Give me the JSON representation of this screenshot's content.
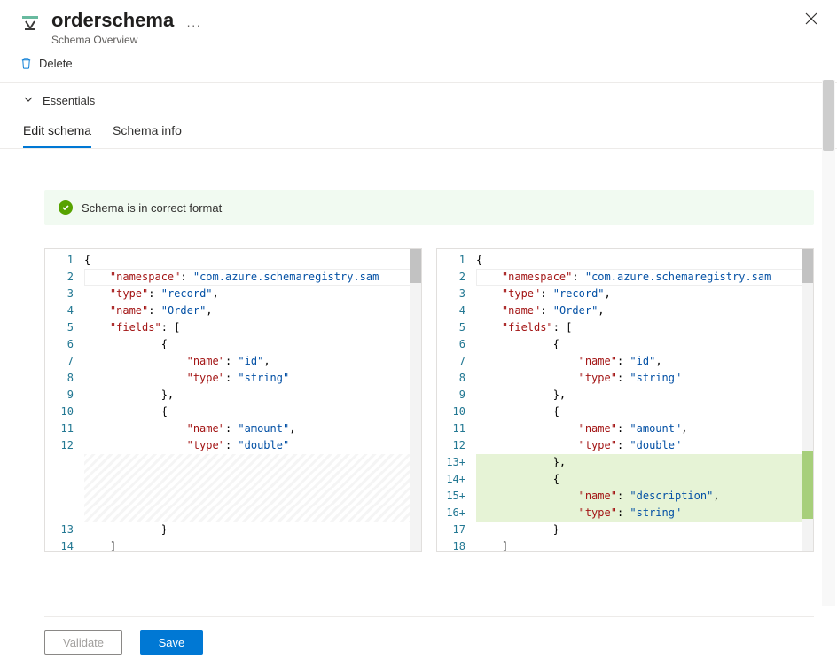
{
  "header": {
    "title": "orderschema",
    "subtitle": "Schema Overview",
    "more": "···"
  },
  "toolbar": {
    "delete_label": "Delete"
  },
  "essentials": {
    "label": "Essentials"
  },
  "tabs": {
    "edit": "Edit schema",
    "info": "Schema info"
  },
  "status": {
    "message": "Schema is in correct format"
  },
  "editors": {
    "left": {
      "gutter": [
        "1",
        "2",
        "3",
        "4",
        "5",
        "6",
        "7",
        "8",
        "9",
        "10",
        "11",
        "12",
        "",
        "",
        "",
        "",
        "13",
        "14"
      ],
      "lines": [
        {
          "cls": "",
          "tokens": [
            {
              "t": "{",
              "c": "t-punc"
            }
          ],
          "cursor": true
        },
        {
          "cls": "",
          "indent": 1,
          "tokens": [
            {
              "t": "\"namespace\"",
              "c": "t-key"
            },
            {
              "t": ": ",
              "c": "t-punc"
            },
            {
              "t": "\"com.azure.schemaregistry.sam",
              "c": "t-str"
            }
          ]
        },
        {
          "cls": "",
          "indent": 1,
          "tokens": [
            {
              "t": "\"type\"",
              "c": "t-key"
            },
            {
              "t": ": ",
              "c": "t-punc"
            },
            {
              "t": "\"record\"",
              "c": "t-str"
            },
            {
              "t": ",",
              "c": "t-punc"
            }
          ]
        },
        {
          "cls": "",
          "indent": 1,
          "tokens": [
            {
              "t": "\"name\"",
              "c": "t-key"
            },
            {
              "t": ": ",
              "c": "t-punc"
            },
            {
              "t": "\"Order\"",
              "c": "t-str"
            },
            {
              "t": ",",
              "c": "t-punc"
            }
          ]
        },
        {
          "cls": "",
          "indent": 1,
          "tokens": [
            {
              "t": "\"fields\"",
              "c": "t-key"
            },
            {
              "t": ": [",
              "c": "t-punc"
            }
          ]
        },
        {
          "cls": "",
          "indent": 3,
          "tokens": [
            {
              "t": "{",
              "c": "t-punc"
            }
          ]
        },
        {
          "cls": "",
          "indent": 4,
          "tokens": [
            {
              "t": "\"name\"",
              "c": "t-key"
            },
            {
              "t": ": ",
              "c": "t-punc"
            },
            {
              "t": "\"id\"",
              "c": "t-str"
            },
            {
              "t": ",",
              "c": "t-punc"
            }
          ]
        },
        {
          "cls": "",
          "indent": 4,
          "tokens": [
            {
              "t": "\"type\"",
              "c": "t-key"
            },
            {
              "t": ": ",
              "c": "t-punc"
            },
            {
              "t": "\"string\"",
              "c": "t-str"
            }
          ]
        },
        {
          "cls": "",
          "indent": 3,
          "tokens": [
            {
              "t": "},",
              "c": "t-punc"
            }
          ]
        },
        {
          "cls": "",
          "indent": 3,
          "tokens": [
            {
              "t": "{",
              "c": "t-punc"
            }
          ]
        },
        {
          "cls": "",
          "indent": 4,
          "tokens": [
            {
              "t": "\"name\"",
              "c": "t-key"
            },
            {
              "t": ": ",
              "c": "t-punc"
            },
            {
              "t": "\"amount\"",
              "c": "t-str"
            },
            {
              "t": ",",
              "c": "t-punc"
            }
          ]
        },
        {
          "cls": "",
          "indent": 4,
          "tokens": [
            {
              "t": "\"type\"",
              "c": "t-key"
            },
            {
              "t": ": ",
              "c": "t-punc"
            },
            {
              "t": "\"double\"",
              "c": "t-str"
            }
          ]
        },
        {
          "cls": "diff-gap",
          "tokens": []
        },
        {
          "cls": "diff-gap",
          "tokens": []
        },
        {
          "cls": "diff-gap",
          "tokens": []
        },
        {
          "cls": "diff-gap",
          "tokens": []
        },
        {
          "cls": "",
          "indent": 3,
          "tokens": [
            {
              "t": "}",
              "c": "t-punc"
            }
          ]
        },
        {
          "cls": "",
          "indent": 1,
          "tokens": [
            {
              "t": "]",
              "c": "t-punc"
            }
          ]
        }
      ]
    },
    "right": {
      "gutter": [
        "1",
        "2",
        "3",
        "4",
        "5",
        "6",
        "7",
        "8",
        "9",
        "10",
        "11",
        "12",
        "13+",
        "14+",
        "15+",
        "16+",
        "17",
        "18"
      ],
      "lines": [
        {
          "cls": "",
          "tokens": [
            {
              "t": "{",
              "c": "t-punc"
            }
          ],
          "cursor": true
        },
        {
          "cls": "",
          "indent": 1,
          "tokens": [
            {
              "t": "\"namespace\"",
              "c": "t-key"
            },
            {
              "t": ": ",
              "c": "t-punc"
            },
            {
              "t": "\"com.azure.schemaregistry.sam",
              "c": "t-str"
            }
          ]
        },
        {
          "cls": "",
          "indent": 1,
          "tokens": [
            {
              "t": "\"type\"",
              "c": "t-key"
            },
            {
              "t": ": ",
              "c": "t-punc"
            },
            {
              "t": "\"record\"",
              "c": "t-str"
            },
            {
              "t": ",",
              "c": "t-punc"
            }
          ]
        },
        {
          "cls": "",
          "indent": 1,
          "tokens": [
            {
              "t": "\"name\"",
              "c": "t-key"
            },
            {
              "t": ": ",
              "c": "t-punc"
            },
            {
              "t": "\"Order\"",
              "c": "t-str"
            },
            {
              "t": ",",
              "c": "t-punc"
            }
          ]
        },
        {
          "cls": "",
          "indent": 1,
          "tokens": [
            {
              "t": "\"fields\"",
              "c": "t-key"
            },
            {
              "t": ": [",
              "c": "t-punc"
            }
          ]
        },
        {
          "cls": "",
          "indent": 3,
          "tokens": [
            {
              "t": "{",
              "c": "t-punc"
            }
          ]
        },
        {
          "cls": "",
          "indent": 4,
          "tokens": [
            {
              "t": "\"name\"",
              "c": "t-key"
            },
            {
              "t": ": ",
              "c": "t-punc"
            },
            {
              "t": "\"id\"",
              "c": "t-str"
            },
            {
              "t": ",",
              "c": "t-punc"
            }
          ]
        },
        {
          "cls": "",
          "indent": 4,
          "tokens": [
            {
              "t": "\"type\"",
              "c": "t-key"
            },
            {
              "t": ": ",
              "c": "t-punc"
            },
            {
              "t": "\"string\"",
              "c": "t-str"
            }
          ]
        },
        {
          "cls": "",
          "indent": 3,
          "tokens": [
            {
              "t": "},",
              "c": "t-punc"
            }
          ]
        },
        {
          "cls": "",
          "indent": 3,
          "tokens": [
            {
              "t": "{",
              "c": "t-punc"
            }
          ]
        },
        {
          "cls": "",
          "indent": 4,
          "tokens": [
            {
              "t": "\"name\"",
              "c": "t-key"
            },
            {
              "t": ": ",
              "c": "t-punc"
            },
            {
              "t": "\"amount\"",
              "c": "t-str"
            },
            {
              "t": ",",
              "c": "t-punc"
            }
          ]
        },
        {
          "cls": "",
          "indent": 4,
          "tokens": [
            {
              "t": "\"type\"",
              "c": "t-key"
            },
            {
              "t": ": ",
              "c": "t-punc"
            },
            {
              "t": "\"double\"",
              "c": "t-str"
            }
          ]
        },
        {
          "cls": "diff-add",
          "indent": 3,
          "tokens": [
            {
              "t": "},",
              "c": "t-punc"
            }
          ]
        },
        {
          "cls": "diff-add",
          "indent": 3,
          "tokens": [
            {
              "t": "{",
              "c": "t-punc"
            }
          ]
        },
        {
          "cls": "diff-add",
          "indent": 4,
          "tokens": [
            {
              "t": "\"name\"",
              "c": "t-key"
            },
            {
              "t": ": ",
              "c": "t-punc"
            },
            {
              "t": "\"description\"",
              "c": "t-str"
            },
            {
              "t": ",",
              "c": "t-punc"
            }
          ]
        },
        {
          "cls": "diff-add",
          "indent": 4,
          "tokens": [
            {
              "t": "\"type\"",
              "c": "t-key"
            },
            {
              "t": ": ",
              "c": "t-punc"
            },
            {
              "t": "\"string\"",
              "c": "t-str"
            }
          ]
        },
        {
          "cls": "",
          "indent": 3,
          "tokens": [
            {
              "t": "}",
              "c": "t-punc"
            }
          ]
        },
        {
          "cls": "",
          "indent": 1,
          "tokens": [
            {
              "t": "]",
              "c": "t-punc"
            }
          ]
        }
      ]
    }
  },
  "footer": {
    "validate": "Validate",
    "save": "Save"
  },
  "colors": {
    "accent": "#0078d4",
    "success_bg": "#f1faf1",
    "success_icon": "#57a300",
    "diff_add": "#e6f3d6",
    "key": "#a31515",
    "str": "#0451a5"
  }
}
